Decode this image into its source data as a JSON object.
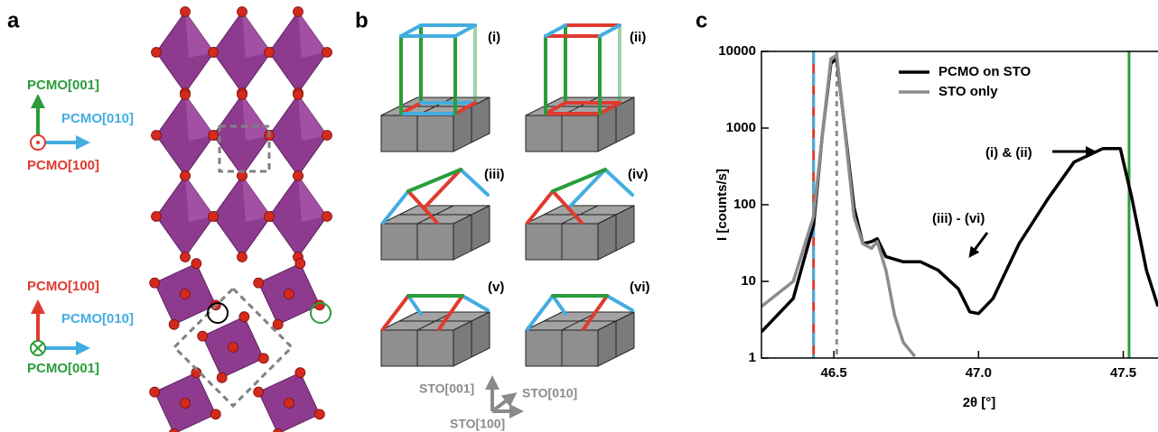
{
  "panel_labels": [
    "a",
    "b",
    "c"
  ],
  "panel_a": {
    "axes_top": [
      "PCMO[001]",
      "PCMO[010]",
      "PCMO[100]"
    ],
    "axes_bottom": [
      "PCMO[100]",
      "PCMO[010]",
      "PCMO[001]"
    ]
  },
  "panel_b": {
    "labels": [
      "(i)",
      "(ii)",
      "(iii)",
      "(iv)",
      "(v)",
      "(vi)"
    ],
    "axes": [
      "STO[001]",
      "STO[010]",
      "STO[100]"
    ]
  },
  "chart_data": {
    "type": "line",
    "x_label": "2θ [°]",
    "y_label": "I [counts/s]",
    "log_y": true,
    "legend": "upper center",
    "xlim": [
      46.25,
      47.62
    ],
    "ylim": [
      1,
      10000
    ],
    "xticks": [
      46.5,
      {
        "value": 47,
        "label": "47.0"
      },
      47.5
    ],
    "yticks": [
      1,
      10,
      100,
      1000,
      10000
    ],
    "series": [
      {
        "name": "PCMO on STO",
        "color": "#000000",
        "x": [
          46.25,
          46.36,
          46.43,
          46.46,
          46.49,
          46.51,
          46.53,
          46.57,
          46.6,
          46.63,
          46.65,
          46.68,
          46.74,
          46.8,
          46.86,
          46.93,
          46.97,
          47.0,
          47.05,
          47.14,
          47.24,
          47.33,
          47.43,
          47.49,
          47.53,
          47.58,
          47.62
        ],
        "values": [
          2.2,
          6,
          54,
          800,
          7000,
          8000,
          1800,
          92,
          31,
          33,
          36,
          21,
          18,
          18,
          14,
          8,
          4,
          3.8,
          6,
          31,
          120,
          360,
          540,
          540,
          120,
          14,
          4.7
        ]
      },
      {
        "name": "STO only",
        "color": "#8c8c8c",
        "x": [
          46.25,
          46.36,
          46.43,
          46.46,
          46.49,
          46.51,
          46.53,
          46.57,
          46.6,
          46.63,
          46.65,
          46.68,
          46.71,
          46.74,
          46.78
        ],
        "values": [
          4.7,
          10,
          70,
          800,
          8000,
          9000,
          1800,
          70,
          31,
          27,
          33,
          14,
          3.6,
          1.6,
          1.05
        ]
      }
    ],
    "vlines": [
      {
        "x": 46.43,
        "color": "#e03a2f",
        "color2": "#43ade0",
        "style": "dashed"
      },
      {
        "x": 46.51,
        "color": "#8c8c8c",
        "style": "dotted"
      },
      {
        "x": 47.52,
        "color": "#2a9d3a",
        "style": "solid"
      }
    ],
    "annotations": [
      "(i) & (ii)",
      "(iii) - (vi)"
    ]
  }
}
